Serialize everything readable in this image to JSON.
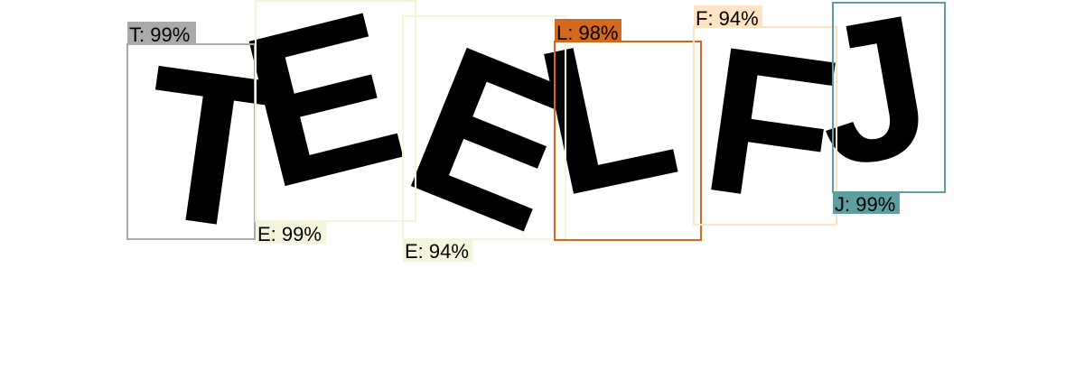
{
  "detections": [
    {
      "char": "T",
      "label": "T: 99%",
      "color": "#aaaaaa"
    },
    {
      "char": "E",
      "label": "E: 99%",
      "color": "#f5f5dc"
    },
    {
      "char": "E",
      "label": "E: 94%",
      "color": "#f5f5dc"
    },
    {
      "char": "L",
      "label": "L: 98%",
      "color": "#d2691e"
    },
    {
      "char": "F",
      "label": "F: 94%",
      "color": "#ffe4c4"
    },
    {
      "char": "J",
      "label": "J: 99%",
      "color": "#5f9ea0"
    }
  ]
}
